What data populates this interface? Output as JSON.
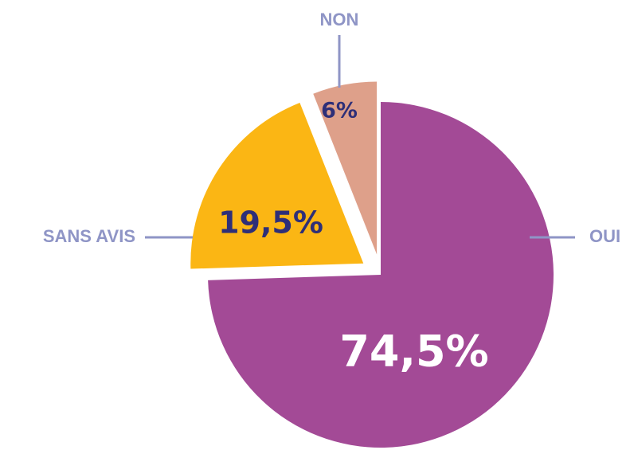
{
  "chart_data": {
    "type": "pie",
    "categories": [
      "OUI",
      "SANS AVIS",
      "NON"
    ],
    "values": [
      74.5,
      19.5,
      6
    ],
    "value_labels": [
      "74,5%",
      "19,5%",
      "6%"
    ],
    "colors": [
      "#a34a96",
      "#fbb614",
      "#dea08a"
    ]
  }
}
